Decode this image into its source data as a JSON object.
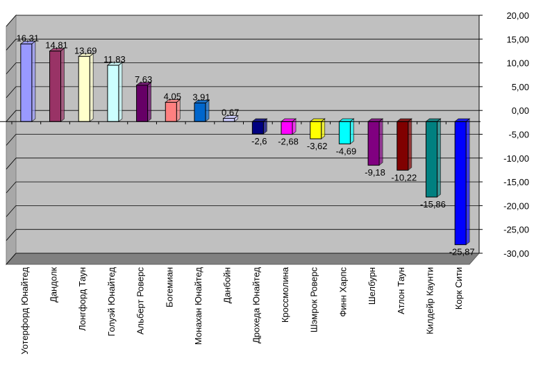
{
  "chart_data": {
    "type": "bar",
    "categories": [
      "Уотерфорд Юнайтед",
      "Дандолк",
      "Лонгфорд Таун",
      "Голуэй Юнайтед",
      "Альберт Роверс",
      "Богемиан",
      "Монахан Юнайтед",
      "Данбойн",
      "Дрохеда Юнайтед",
      "Кроссмолина",
      "Шэмрок Роверс",
      "Финн Харпс",
      "Шелбурн",
      "Атлон Таун",
      "Килдейр Каунти",
      "Корк Сити"
    ],
    "values": [
      16.31,
      14.81,
      13.69,
      11.83,
      7.63,
      4.05,
      3.91,
      0.67,
      -2.6,
      -2.68,
      -3.62,
      -4.69,
      -9.18,
      -10.22,
      -15.86,
      -25.87
    ],
    "value_labels": [
      "16,31",
      "14,81",
      "13,69",
      "11,83",
      "7,63",
      "4,05",
      "3,91",
      "0,67",
      "-2,6",
      "-2,68",
      "-3,62",
      "-4,69",
      "-9,18",
      "-10,22",
      "-15,86",
      "-25,87"
    ],
    "colors": [
      "#9999ff",
      "#993366",
      "#ffffcc",
      "#ccffff",
      "#660066",
      "#ff8080",
      "#0066cc",
      "#ccccff",
      "#000080",
      "#ff00ff",
      "#ffff00",
      "#00ffff",
      "#800080",
      "#800000",
      "#008080",
      "#0000ff"
    ],
    "ylim": [
      -30,
      20
    ],
    "y_ticks": [
      20,
      15,
      10,
      5,
      0,
      -5,
      -10,
      -15,
      -20,
      -25,
      -30
    ],
    "y_tick_labels": [
      "20,00",
      "15,00",
      "10,00",
      "5,00",
      "0,00",
      "-5,00",
      "-10,00",
      "-15,00",
      "-20,00",
      "-25,00",
      "-30,00"
    ],
    "y_axis_side": "right",
    "grid": true,
    "plot_background": "#c0c0c0",
    "style": "3d-bar",
    "title": "",
    "xlabel": "",
    "ylabel": ""
  }
}
